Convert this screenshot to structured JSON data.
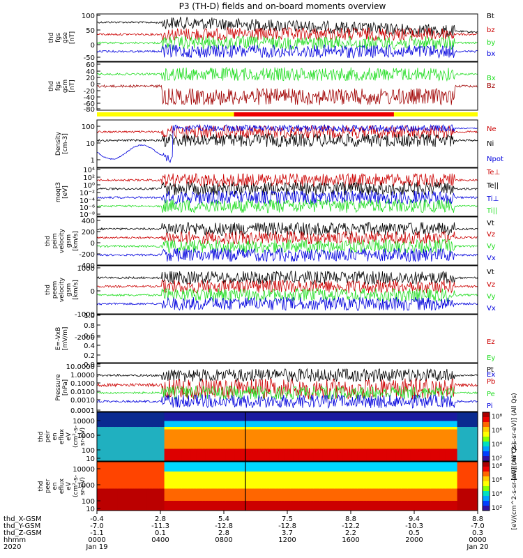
{
  "title": "P3 (TH-D) fields and on-board moments overview",
  "colors": {
    "black": "#000000",
    "red": "#cc0000",
    "darkred": "#a00000",
    "green": "#22dd22",
    "blue": "#0000dd",
    "yellow": "#ffff00"
  },
  "chart_data": {
    "type": "line",
    "time_axis": {
      "row_labels": [
        "thd_X-GSM",
        "thd_Y-GSM",
        "thd_Z-GSM",
        "hhmm",
        "2020"
      ],
      "columns": [
        {
          "values": [
            "-0.4",
            "-7.0",
            "-1.1",
            "0000",
            "Jan 19"
          ]
        },
        {
          "values": [
            "2.8",
            "-11.3",
            "0.1",
            "0400",
            ""
          ]
        },
        {
          "values": [
            "5.4",
            "-12.8",
            "2.8",
            "0800",
            ""
          ]
        },
        {
          "values": [
            "7.5",
            "-12.8",
            "3.7",
            "1200",
            ""
          ]
        },
        {
          "values": [
            "8.8",
            "-12.2",
            "2.2",
            "1600",
            ""
          ]
        },
        {
          "values": [
            "9.4",
            "-10.3",
            "0.5",
            "2000",
            ""
          ]
        },
        {
          "values": [
            "8.8",
            "-7.0",
            "0.3",
            "0000",
            "Jan 20"
          ]
        }
      ]
    },
    "panels": [
      {
        "id": "fgs-gse",
        "ylabel": [
          "thd",
          "fgs",
          "gse",
          "[nT]"
        ],
        "ticks": [
          "100",
          "50",
          "0",
          "-50"
        ],
        "legend": [
          {
            "label": "Bt",
            "color": "black"
          },
          {
            "label": "bz",
            "color": "red"
          },
          {
            "label": "by",
            "color": "green"
          },
          {
            "label": "bx",
            "color": "blue"
          }
        ]
      },
      {
        "id": "fgs-gsm",
        "ylabel": [
          "thd",
          "fgs",
          "gsm",
          "[nT]"
        ],
        "ticks": [
          "60",
          "40",
          "20",
          "0",
          "-20",
          "-40",
          "-60",
          "-80"
        ],
        "legend": [
          {
            "label": "Bx",
            "color": "green"
          },
          {
            "label": "Bz",
            "color": "darkred"
          }
        ]
      },
      {
        "id": "density",
        "ylabel": [
          "Density",
          "[cm-3]"
        ],
        "ticks": [
          "100",
          "10",
          "1"
        ],
        "legend": [
          {
            "label": "Ne",
            "color": "red"
          },
          {
            "label": "Ni",
            "color": "black"
          },
          {
            "label": "Npot",
            "color": "blue"
          }
        ]
      },
      {
        "id": "temperature",
        "ylabel": [
          "moqt3",
          "[eV]"
        ],
        "ticks": [
          "10⁴",
          "10²",
          "10⁰",
          "10⁻²",
          "10⁻⁴",
          "10⁻⁶",
          "10⁻⁸"
        ],
        "legend": [
          {
            "label": "Te⊥",
            "color": "red"
          },
          {
            "label": "Te||",
            "color": "black"
          },
          {
            "label": "Ti⊥",
            "color": "blue"
          },
          {
            "label": "Ti||",
            "color": "green"
          }
        ]
      },
      {
        "id": "ion-velocity",
        "ylabel": [
          "thd",
          "peim",
          "velocity",
          "gsm",
          "[km/s]"
        ],
        "ticks": [
          "400",
          "200",
          "0",
          "-200",
          "-400"
        ],
        "legend": [
          {
            "label": "Vt",
            "color": "black"
          },
          {
            "label": "Vz",
            "color": "red"
          },
          {
            "label": "Vy",
            "color": "green"
          },
          {
            "label": "Vx",
            "color": "blue"
          }
        ]
      },
      {
        "id": "electron-velocity",
        "ylabel": [
          "thd",
          "peem",
          "velocity",
          "gsm",
          "[km/s]"
        ],
        "ticks": [
          "1000",
          "0",
          "-1000",
          "-2000"
        ],
        "legend": [
          {
            "label": "Vt",
            "color": "black"
          },
          {
            "label": "Vz",
            "color": "red"
          },
          {
            "label": "Vy",
            "color": "green"
          },
          {
            "label": "Vx",
            "color": "blue"
          }
        ]
      },
      {
        "id": "e-field",
        "ylabel": [
          "E=-VxB",
          "[mV/m]"
        ],
        "ticks": [
          "1.0",
          "0.8",
          "0.6",
          "0.4",
          "0.2",
          "0.0"
        ],
        "legend": [
          {
            "label": "Ez",
            "color": "red"
          },
          {
            "label": "Ey",
            "color": "green"
          },
          {
            "label": "Ex",
            "color": "blue"
          }
        ]
      },
      {
        "id": "pressure",
        "ylabel": [
          "Pressure",
          "[nPa]"
        ],
        "ticks": [
          "10.0000",
          "1.0000",
          "0.1000",
          "0.0100",
          "0.0010",
          "0.0001"
        ],
        "legend": [
          {
            "label": "Pt",
            "color": "black"
          },
          {
            "label": "Pb",
            "color": "red"
          },
          {
            "label": "Pe",
            "color": "green"
          },
          {
            "label": "Pi",
            "color": "blue"
          }
        ]
      },
      {
        "id": "ion-spectrogram",
        "ylabel": [
          "thd",
          "peir",
          "en",
          "eflux",
          "eV",
          "(cm²-s-",
          "sr-eV)"
        ],
        "ticks": [
          "10000",
          "1000",
          "100",
          "10"
        ]
      },
      {
        "id": "electron-spectrogram",
        "ylabel": [
          "thd",
          "peer",
          "en",
          "eflux",
          "eV",
          "(cm²-s-",
          "sr-eV)"
        ],
        "ticks": [
          "10000",
          "1000",
          "100",
          "10"
        ]
      }
    ],
    "colorbars": [
      {
        "ticks": [
          "10⁸",
          "10⁶",
          "10⁴",
          "10²"
        ],
        "label": "[eV/(cm^2-s-sr-eV)] (All Qs)"
      },
      {
        "ticks": [
          "10⁸",
          "10⁶",
          "10⁴",
          "10²"
        ],
        "label": "[eV/(cm^2-s-sr-eV)] (All Qs)"
      }
    ]
  }
}
